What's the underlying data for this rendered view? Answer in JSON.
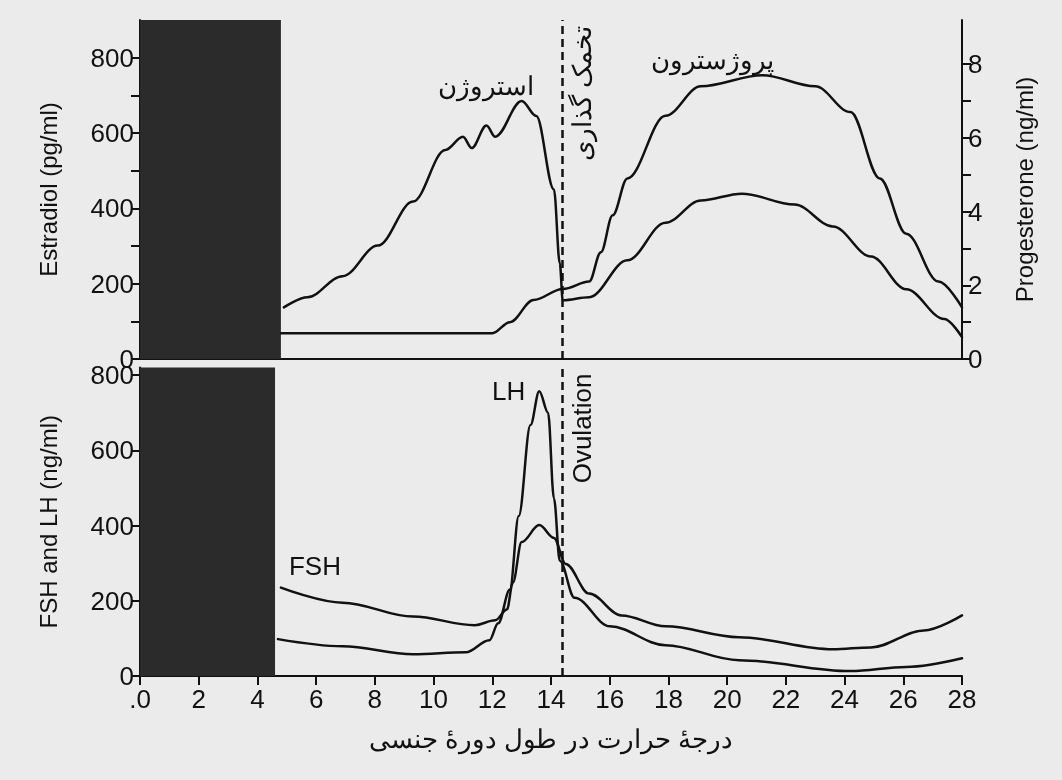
{
  "chart_data": [
    {
      "type": "line",
      "ylabel": "Estradiol (pg/ml)",
      "y2label": "Progesterone (ng/ml)",
      "xlim": [
        0,
        28
      ],
      "ylim": [
        0,
        900
      ],
      "yticks": [
        0,
        {
          "value": 100,
          "label": null
        },
        200,
        {
          "value": 300,
          "label": null
        },
        400,
        {
          "value": 500,
          "label": null
        },
        600,
        {
          "value": 700,
          "label": null
        },
        800
      ],
      "y2lim": [
        0,
        9.2
      ],
      "y2ticks": [
        0,
        {
          "value": 1,
          "label": null
        },
        2,
        {
          "value": 3,
          "label": null
        },
        4,
        {
          "value": 5,
          "label": null
        },
        6,
        {
          "value": 7,
          "label": null
        },
        8
      ],
      "tick_labels": "y",
      "marker": "none",
      "series": [
        {
          "name": "استروژن",
          "color": "#111111",
          "x": [
            4.9,
            5.7,
            6.9,
            8.1,
            9.3,
            10.4,
            11.0,
            11.3,
            11.8,
            12.1,
            13.0,
            13.5,
            14.1,
            14.3,
            14.4,
            15.3,
            16.6,
            17.9,
            19.1,
            20.5,
            22.3,
            23.6,
            24.9,
            26.1,
            27.4,
            28
          ],
          "values": [
            137,
            164,
            220,
            301,
            418,
            555,
            590,
            560,
            620,
            590,
            685,
            645,
            450,
            254,
            156,
            164,
            262,
            362,
            421,
            439,
            410,
            352,
            272,
            185,
            106,
            58
          ]
        },
        {
          "name": "پروژسترون",
          "color": "#111111",
          "axis": "y2",
          "x": [
            4.8,
            12.0,
            12.6,
            13.4,
            14.4,
            15.3,
            15.7,
            16.1,
            16.6,
            17.9,
            19.1,
            21.2,
            23.0,
            24.2,
            25.2,
            26.1,
            27.2,
            28
          ],
          "values": [
            0.7,
            0.7,
            1.0,
            1.6,
            1.9,
            2.1,
            2.9,
            3.9,
            4.9,
            6.6,
            7.4,
            7.7,
            7.4,
            6.7,
            4.9,
            3.4,
            2.1,
            1.4
          ]
        }
      ],
      "ref_lines": [
        {
          "axis": "x",
          "value": 14.4,
          "label": "تخمک گذاری",
          "line_style": "dashed",
          "color": "#111111"
        }
      ],
      "bands": [
        {
          "axis": "x",
          "from": 0,
          "to": 4.8,
          "color": "#2b2b2b"
        }
      ]
    },
    {
      "type": "line",
      "ylabel": "FSH and LH (ng/ml)",
      "xlabel": "درجۀ حرارت در طول دورۀ جنسی",
      "xlim": [
        0,
        28
      ],
      "xticks": [
        {
          "value": 0,
          "label": ".0"
        },
        2,
        4,
        6,
        8,
        10,
        12,
        14,
        16,
        18,
        20,
        22,
        24,
        26,
        28
      ],
      "ylim": [
        0,
        820
      ],
      "yticks": [
        0,
        200,
        400,
        600,
        800
      ],
      "marker": "none",
      "series": [
        {
          "name": "FSH",
          "color": "#111111",
          "x": [
            4.8,
            6.9,
            9.3,
            11.4,
            12.1,
            12.5,
            12.7,
            13.0,
            13.6,
            14.1,
            14.5,
            15.3,
            16.4,
            17.9,
            20.4,
            23.6,
            24.9,
            26.7,
            28
          ],
          "values": [
            235,
            195,
            158,
            135,
            148,
            177,
            248,
            356,
            401,
            367,
            298,
            219,
            161,
            132,
            103,
            71,
            76,
            121,
            161
          ]
        },
        {
          "name": "LH",
          "color": "#111111",
          "x": [
            4.7,
            6.9,
            9.3,
            11.1,
            11.9,
            12.2,
            12.6,
            12.9,
            13.3,
            13.6,
            13.9,
            14.1,
            14.3,
            14.8,
            16.0,
            17.9,
            20.4,
            24.2,
            26.1,
            28
          ],
          "values": [
            98,
            79,
            58,
            63,
            95,
            140,
            230,
            425,
            667,
            757,
            700,
            472,
            306,
            208,
            132,
            82,
            42,
            13,
            24,
            47
          ]
        }
      ],
      "ref_lines": [
        {
          "axis": "x",
          "value": 14.4,
          "label": "Ovulation",
          "line_style": "dashed",
          "color": "#111111"
        }
      ],
      "bands": [
        {
          "axis": "x",
          "from": 0,
          "to": 4.6,
          "color": "#2b2b2b"
        }
      ]
    }
  ]
}
